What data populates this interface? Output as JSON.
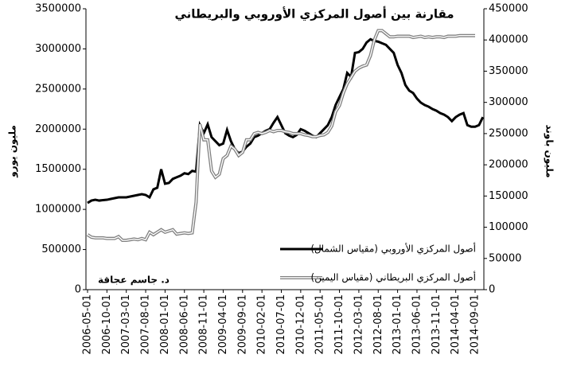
{
  "chart_data": {
    "type": "line",
    "title": "مقارنة بين أصول المركزي الأوروبي والبريطاني",
    "y_label": "مليون يورو",
    "y2_label": "مليون باوند",
    "annotation": "د. جاسم عجاقة",
    "legend": "lower right",
    "categories": [
      "2006-05-01",
      null,
      null,
      null,
      null,
      "2006-10-01",
      null,
      null,
      null,
      null,
      "2007-03-01",
      null,
      null,
      null,
      null,
      "2007-08-01",
      null,
      null,
      null,
      null,
      "2008-01-01",
      null,
      null,
      null,
      null,
      "2008-06-01",
      null,
      null,
      null,
      null,
      "2008-11-01",
      null,
      null,
      null,
      null,
      "2009-04-01",
      null,
      null,
      null,
      null,
      "2009-09-01",
      null,
      null,
      null,
      null,
      "2010-02-01",
      null,
      null,
      null,
      null,
      "2010-07-01",
      null,
      null,
      null,
      null,
      "2010-12-01",
      null,
      null,
      null,
      null,
      "2011-05-01",
      null,
      null,
      null,
      null,
      "2011-10-01",
      null,
      null,
      null,
      null,
      "2012-03-01",
      null,
      null,
      null,
      null,
      "2012-08-01",
      null,
      null,
      null,
      null,
      "2013-01-01",
      null,
      null,
      null,
      null,
      "2013-06-01",
      null,
      null,
      null,
      null,
      "2013-11-01",
      null,
      null,
      null,
      null,
      "2014-04-01",
      null,
      null,
      null,
      null,
      "2014-09-01",
      null,
      null
    ],
    "series": [
      {
        "name": "أصول المركزي الأوروبي (مقياس الشمال)",
        "color": "#000000",
        "axis": "y",
        "values": [
          1080000,
          1110000,
          1120000,
          1110000,
          1115000,
          1120000,
          1130000,
          1140000,
          1150000,
          1150000,
          1150000,
          1160000,
          1170000,
          1180000,
          1190000,
          1180000,
          1150000,
          1250000,
          1270000,
          1500000,
          1320000,
          1330000,
          1380000,
          1400000,
          1420000,
          1450000,
          1440000,
          1480000,
          1470000,
          2050000,
          1950000,
          2060000,
          1900000,
          1850000,
          1800000,
          1820000,
          1990000,
          1850000,
          1750000,
          1700000,
          1720000,
          1780000,
          1820000,
          1900000,
          1920000,
          1950000,
          1980000,
          2000000,
          2080000,
          2150000,
          2050000,
          1950000,
          1920000,
          1900000,
          1930000,
          2000000,
          1980000,
          1950000,
          1920000,
          1900000,
          1950000,
          2000000,
          2050000,
          2150000,
          2300000,
          2400000,
          2500000,
          2700000,
          2650000,
          2950000,
          2960000,
          3000000,
          3080000,
          3120000,
          3100000,
          3090000,
          3070000,
          3050000,
          3000000,
          2950000,
          2800000,
          2700000,
          2550000,
          2480000,
          2450000,
          2380000,
          2330000,
          2300000,
          2280000,
          2250000,
          2230000,
          2200000,
          2180000,
          2150000,
          2100000,
          2150000,
          2180000,
          2200000,
          2050000,
          2030000,
          2030000,
          2050000,
          2150000
        ]
      },
      {
        "name": "أصول المركزي البريطاني (مقياس اليمين)",
        "color": "#808080",
        "axis": "y2",
        "values": [
          88000,
          84000,
          83000,
          83000,
          83000,
          82000,
          82000,
          82000,
          85000,
          79000,
          79000,
          80000,
          81000,
          80000,
          82000,
          80000,
          92000,
          88000,
          92000,
          96000,
          92000,
          94000,
          96000,
          89000,
          90000,
          91000,
          90000,
          91000,
          140000,
          265000,
          240000,
          240000,
          190000,
          180000,
          185000,
          210000,
          215000,
          230000,
          225000,
          215000,
          220000,
          240000,
          240000,
          250000,
          252000,
          250000,
          252000,
          255000,
          253000,
          255000,
          255000,
          253000,
          252000,
          250000,
          250000,
          250000,
          248000,
          247000,
          245000,
          245000,
          247000,
          248000,
          252000,
          262000,
          285000,
          295000,
          315000,
          330000,
          340000,
          350000,
          355000,
          358000,
          360000,
          375000,
          400000,
          415000,
          415000,
          410000,
          405000,
          405000,
          406000,
          406000,
          406000,
          406000,
          404000,
          405000,
          406000,
          404000,
          405000,
          404000,
          405000,
          405000,
          404000,
          406000,
          406000,
          406000,
          407000,
          407000,
          407000,
          407000,
          407000,
          null,
          null
        ]
      }
    ],
    "ylim": [
      0,
      3500000
    ],
    "yticks": [
      0,
      500000,
      1000000,
      1500000,
      2000000,
      2500000,
      3000000,
      3500000
    ],
    "y2lim": [
      0,
      450000
    ],
    "y2ticks": [
      0,
      50000,
      100000,
      150000,
      200000,
      250000,
      300000,
      350000,
      400000,
      450000
    ]
  }
}
